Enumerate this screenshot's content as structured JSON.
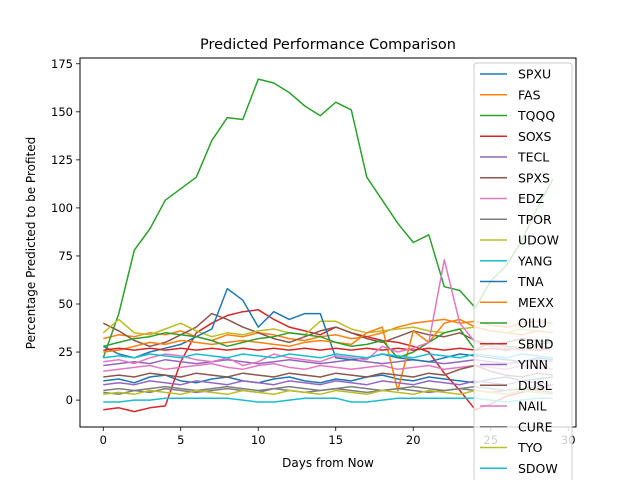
{
  "chart_data": {
    "type": "line",
    "title": "Predicted Performance Comparison",
    "xlabel": "Days from Now",
    "ylabel": "Percentage Predicted to be Profited",
    "xlim": [
      -1.5,
      30.5
    ],
    "ylim": [
      -14,
      178
    ],
    "xticks": [
      0,
      5,
      10,
      15,
      20,
      25,
      30
    ],
    "yticks": [
      0,
      25,
      50,
      75,
      100,
      125,
      150,
      175
    ],
    "legend_position": "right",
    "grid": false,
    "series": [
      {
        "name": "SPXU",
        "color": "#1f77b4",
        "values": [
          10,
          11,
          9,
          12,
          13,
          10,
          9,
          11,
          12,
          10,
          9,
          11,
          12,
          10,
          9,
          11,
          10,
          12,
          13,
          11,
          10,
          12,
          11,
          10,
          9,
          11,
          12,
          10,
          11,
          12
        ]
      },
      {
        "name": "FAS",
        "color": "#ff7f0e",
        "values": [
          32,
          34,
          33,
          35,
          34,
          36,
          33,
          31,
          34,
          33,
          35,
          34,
          32,
          31,
          33,
          34,
          32,
          33,
          35,
          38,
          40,
          41,
          42,
          40,
          41,
          39,
          38,
          40,
          41,
          40
        ]
      },
      {
        "name": "TQQQ",
        "color": "#2ca02c",
        "values": [
          22,
          45,
          78,
          89,
          104,
          110,
          116,
          135,
          147,
          146,
          167,
          165,
          160,
          153,
          148,
          155,
          151,
          116,
          104,
          92,
          82,
          86,
          59,
          57,
          48,
          62,
          70,
          83,
          100,
          115
        ]
      },
      {
        "name": "SOXS",
        "color": "#d62728",
        "values": [
          -5,
          -4,
          -6,
          -4,
          -3,
          20,
          35,
          40,
          44,
          46,
          47,
          42,
          38,
          36,
          34,
          38,
          35,
          33,
          31,
          30,
          28,
          25,
          14,
          5,
          -5,
          -2,
          2,
          4,
          6,
          8
        ]
      },
      {
        "name": "TECL",
        "color": "#9467bd",
        "values": [
          18,
          19,
          20,
          19,
          21,
          20,
          19,
          20,
          21,
          20,
          19,
          20,
          21,
          20,
          19,
          20,
          21,
          20,
          19,
          20,
          21,
          20,
          19,
          20,
          21,
          20,
          19,
          20,
          21,
          20
        ]
      },
      {
        "name": "SPXS",
        "color": "#8c564b",
        "values": [
          40,
          36,
          31,
          28,
          30,
          34,
          38,
          45,
          42,
          38,
          35,
          32,
          30,
          33,
          36,
          38,
          35,
          32,
          30,
          33,
          36,
          34,
          33,
          35,
          31,
          29,
          30,
          32,
          31,
          30
        ]
      },
      {
        "name": "EDZ",
        "color": "#e377c2",
        "values": [
          15,
          16,
          17,
          18,
          16,
          17,
          18,
          19,
          17,
          16,
          18,
          19,
          17,
          16,
          18,
          17,
          16,
          17,
          18,
          16,
          17,
          18,
          16,
          17,
          18,
          17,
          16,
          18,
          17,
          16
        ]
      },
      {
        "name": "TPOR",
        "color": "#7f7f7f",
        "values": [
          5,
          6,
          5,
          6,
          7,
          6,
          5,
          6,
          7,
          6,
          5,
          6,
          7,
          6,
          5,
          6,
          7,
          6,
          5,
          6,
          7,
          6,
          5,
          6,
          7,
          6,
          5,
          6,
          7,
          6
        ]
      },
      {
        "name": "UDOW",
        "color": "#bcbd22",
        "values": [
          35,
          42,
          35,
          34,
          37,
          40,
          36,
          33,
          35,
          34,
          36,
          37,
          35,
          34,
          41,
          41,
          37,
          35,
          36,
          37,
          38,
          36,
          35,
          37,
          38,
          36,
          35,
          37,
          36,
          35
        ]
      },
      {
        "name": "YANG",
        "color": "#17becf",
        "values": [
          -1,
          -1,
          0,
          0,
          1,
          1,
          1,
          1,
          1,
          0,
          -1,
          -1,
          0,
          1,
          1,
          1,
          -1,
          -1,
          0,
          1,
          1,
          1,
          1,
          1,
          1,
          0,
          -1,
          0,
          1,
          1
        ]
      },
      {
        "name": "TNA",
        "color": "#1f77b4",
        "values": [
          28,
          24,
          22,
          25,
          27,
          29,
          33,
          37,
          58,
          52,
          38,
          46,
          42,
          45,
          45,
          22,
          21,
          22,
          24,
          22,
          21,
          20,
          22,
          24,
          23,
          22,
          21,
          20,
          22,
          21
        ]
      },
      {
        "name": "MEXX",
        "color": "#ff7f0e",
        "values": [
          25,
          26,
          28,
          30,
          29,
          31,
          30,
          29,
          30,
          31,
          30,
          29,
          28,
          30,
          31,
          30,
          29,
          35,
          38,
          5,
          36,
          30,
          40,
          42,
          38,
          36,
          35,
          34,
          36,
          35
        ]
      },
      {
        "name": "OILU",
        "color": "#2ca02c",
        "values": [
          28,
          30,
          32,
          33,
          35,
          34,
          33,
          31,
          28,
          30,
          32,
          33,
          35,
          34,
          33,
          30,
          28,
          29,
          31,
          22,
          25,
          30,
          35,
          37,
          26,
          30,
          28,
          27,
          29,
          30
        ]
      },
      {
        "name": "SBND",
        "color": "#d62728",
        "values": [
          26,
          27,
          26,
          27,
          26,
          27,
          26,
          27,
          26,
          27,
          26,
          27,
          26,
          27,
          26,
          27,
          26,
          27,
          26,
          27,
          26,
          27,
          26,
          27,
          26,
          27,
          26,
          27,
          26,
          27
        ]
      },
      {
        "name": "YINN",
        "color": "#9467bd",
        "values": [
          8,
          9,
          8,
          10,
          9,
          8,
          10,
          9,
          8,
          10,
          9,
          8,
          10,
          9,
          8,
          10,
          9,
          8,
          10,
          9,
          8,
          10,
          9,
          8,
          10,
          9,
          8,
          10,
          9,
          8
        ]
      },
      {
        "name": "DUSL",
        "color": "#8c564b",
        "values": [
          12,
          13,
          12,
          14,
          13,
          12,
          14,
          13,
          12,
          14,
          13,
          12,
          14,
          13,
          12,
          14,
          13,
          12,
          14,
          13,
          12,
          14,
          13,
          16,
          18,
          15,
          13,
          12,
          14,
          13
        ]
      },
      {
        "name": "NAIL",
        "color": "#e377c2",
        "values": [
          20,
          21,
          19,
          22,
          24,
          23,
          21,
          20,
          22,
          18,
          20,
          24,
          22,
          21,
          20,
          23,
          22,
          21,
          28,
          25,
          27,
          30,
          73,
          40,
          30,
          28,
          27,
          26,
          28,
          27
        ]
      },
      {
        "name": "CURE",
        "color": "#7f7f7f",
        "values": [
          4,
          3,
          5,
          4,
          6,
          5,
          4,
          5,
          6,
          5,
          4,
          6,
          5,
          4,
          5,
          6,
          5,
          4,
          5,
          6,
          5,
          4,
          5,
          6,
          5,
          4,
          5,
          6,
          5,
          4
        ]
      },
      {
        "name": "TYO",
        "color": "#bcbd22",
        "values": [
          3,
          4,
          3,
          5,
          4,
          3,
          5,
          4,
          3,
          5,
          4,
          3,
          5,
          4,
          3,
          5,
          4,
          3,
          5,
          4,
          3,
          5,
          4,
          3,
          5,
          4,
          3,
          5,
          4,
          3
        ]
      },
      {
        "name": "SDOW",
        "color": "#17becf",
        "values": [
          22,
          23,
          22,
          24,
          23,
          22,
          24,
          23,
          22,
          24,
          23,
          22,
          24,
          23,
          22,
          24,
          23,
          22,
          24,
          23,
          22,
          24,
          23,
          22,
          24,
          23,
          22,
          24,
          23,
          22
        ]
      }
    ]
  }
}
